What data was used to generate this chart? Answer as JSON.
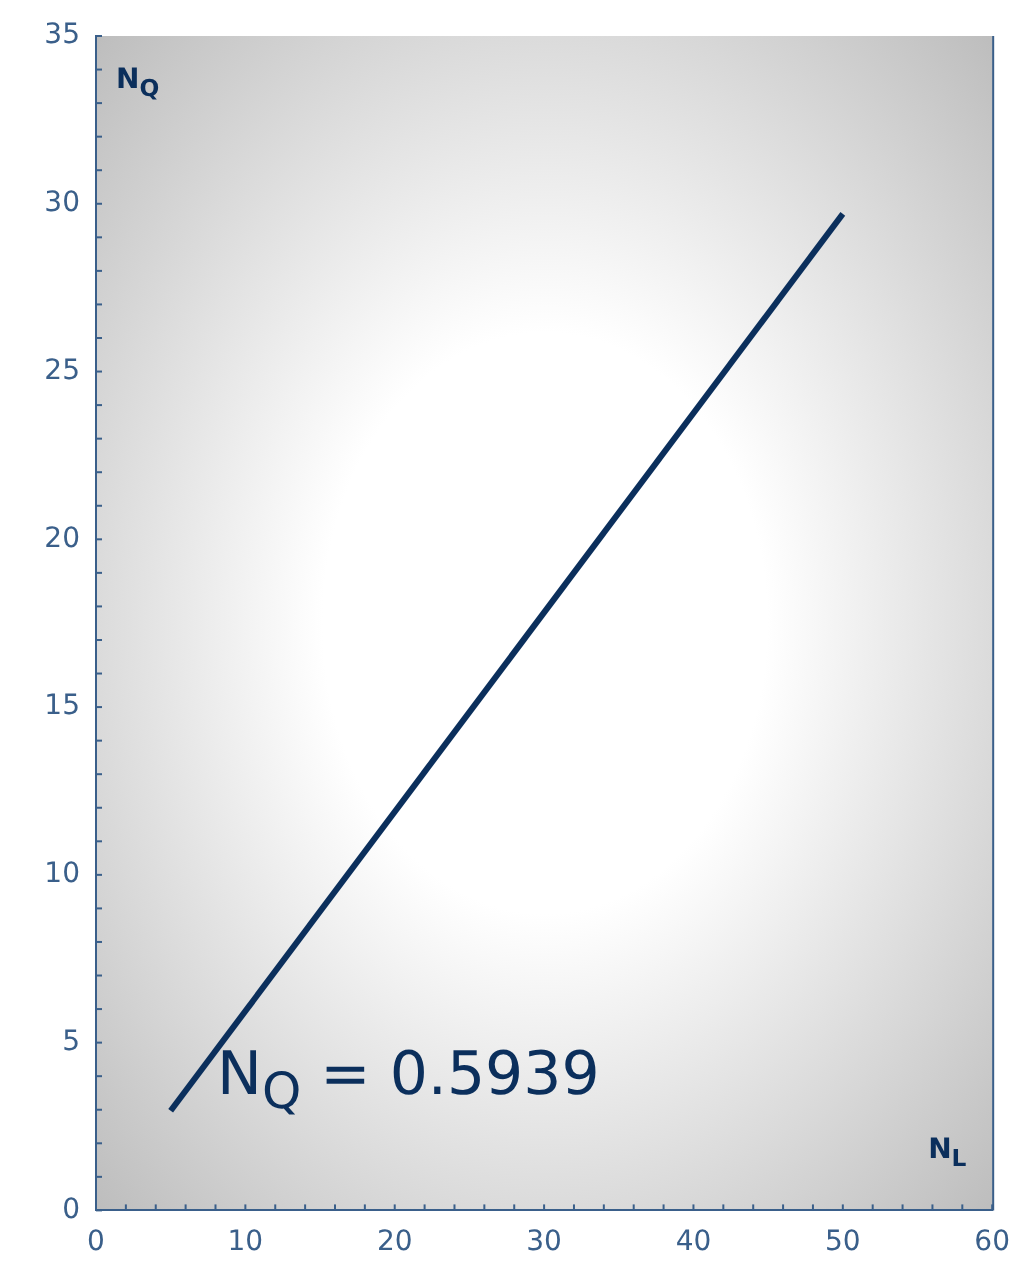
{
  "chart_data": {
    "type": "line",
    "xlabel": "N$_{L}$",
    "ylabel": "N$_{Q}$",
    "annotations": [
      "N$_{Q}$ = 0.5939"
    ],
    "x": [
      5,
      50
    ],
    "series": [
      {
        "color": "#0b2f5c",
        "values": [
          2.97,
          29.7
        ]
      }
    ],
    "xlim": [
      0,
      60
    ],
    "xticks": [
      0,
      10,
      20,
      30,
      40,
      50,
      60
    ],
    "ylim": [
      0,
      35
    ],
    "yticks": [
      0,
      5,
      10,
      15,
      20,
      25,
      30,
      35
    ],
    "grid": false,
    "legend": false,
    "marker": "none",
    "line_style": "solid"
  }
}
